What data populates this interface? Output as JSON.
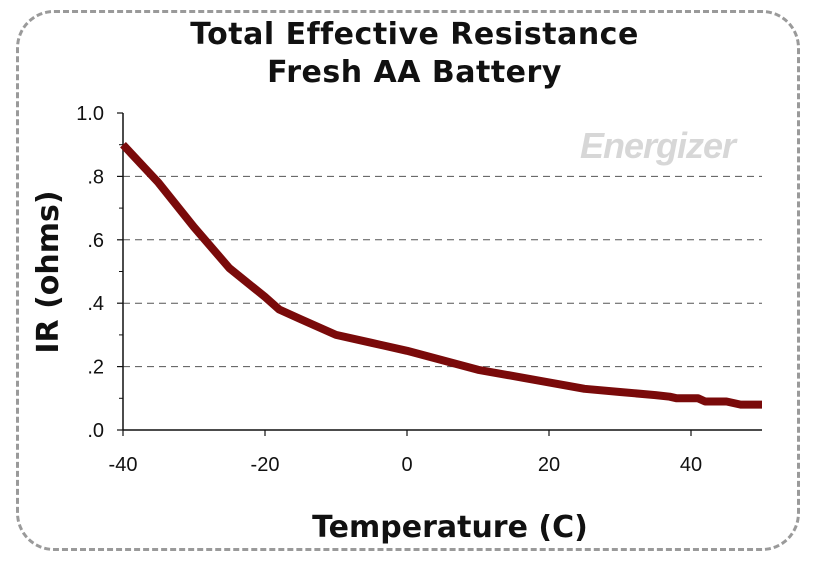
{
  "chart_data": {
    "type": "line",
    "title": "Total Effective Resistance",
    "subtitle": "Fresh AA Battery",
    "xlabel": "Temperature (C)",
    "ylabel": "IR (ohms)",
    "xlim": [
      -40,
      50
    ],
    "ylim": [
      0,
      1.0
    ],
    "x_ticks": [
      -40,
      -20,
      0,
      20,
      40
    ],
    "x_tick_labels": [
      "-40",
      "-20",
      "0",
      "20",
      "40"
    ],
    "y_ticks": [
      0,
      0.2,
      0.4,
      0.6,
      0.8,
      1.0
    ],
    "y_tick_labels": [
      ".0",
      ".2",
      ".4",
      ".6",
      ".8",
      "1.0"
    ],
    "grid": "horizontal dashed",
    "watermark": "Energizer",
    "colors": {
      "line": "#7a0a0a",
      "grid": "#555555",
      "watermark": "#d7d7d7"
    },
    "series": [
      {
        "x": [
          -40,
          -35,
          -30,
          -25,
          -20,
          -18,
          -15,
          -10,
          -5,
          0,
          5,
          10,
          15,
          20,
          25,
          30,
          35,
          37,
          38,
          41,
          42,
          45,
          47,
          50
        ],
        "y": [
          0.9,
          0.78,
          0.64,
          0.51,
          0.42,
          0.38,
          0.35,
          0.3,
          0.275,
          0.25,
          0.22,
          0.19,
          0.17,
          0.15,
          0.13,
          0.12,
          0.11,
          0.105,
          0.1,
          0.1,
          0.09,
          0.09,
          0.08,
          0.08
        ]
      }
    ]
  }
}
